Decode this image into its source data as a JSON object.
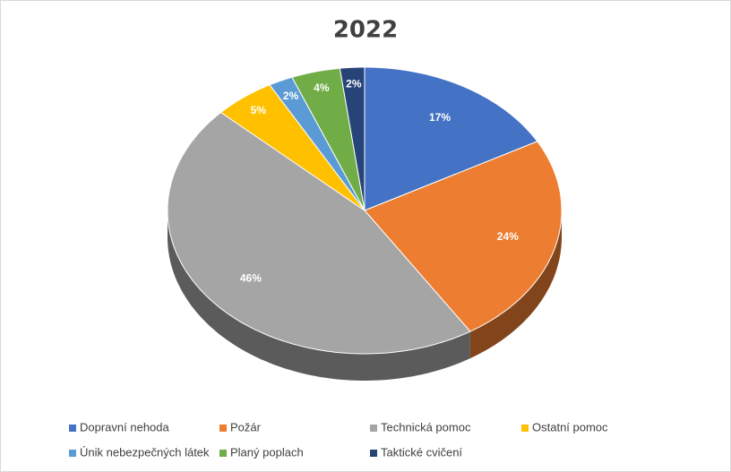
{
  "chart_data": {
    "type": "pie3d",
    "title": "2022",
    "categories": [
      "Dopravní nehoda",
      "Požár",
      "Technická pomoc",
      "Ostatní pomoc",
      "Únik nebezpečných látek",
      "Planý poplach",
      "Taktické cvičení"
    ],
    "values": [
      17,
      24,
      46,
      5,
      2,
      4,
      2
    ],
    "value_labels": [
      "17%",
      "24%",
      "46%",
      "5%",
      "2%",
      "4%",
      "2%"
    ],
    "colors": [
      "#4472c4",
      "#ed7d31",
      "#a5a5a5",
      "#ffc000",
      "#5b9bd5",
      "#70ad47",
      "#264478"
    ],
    "legend": "bottom"
  }
}
